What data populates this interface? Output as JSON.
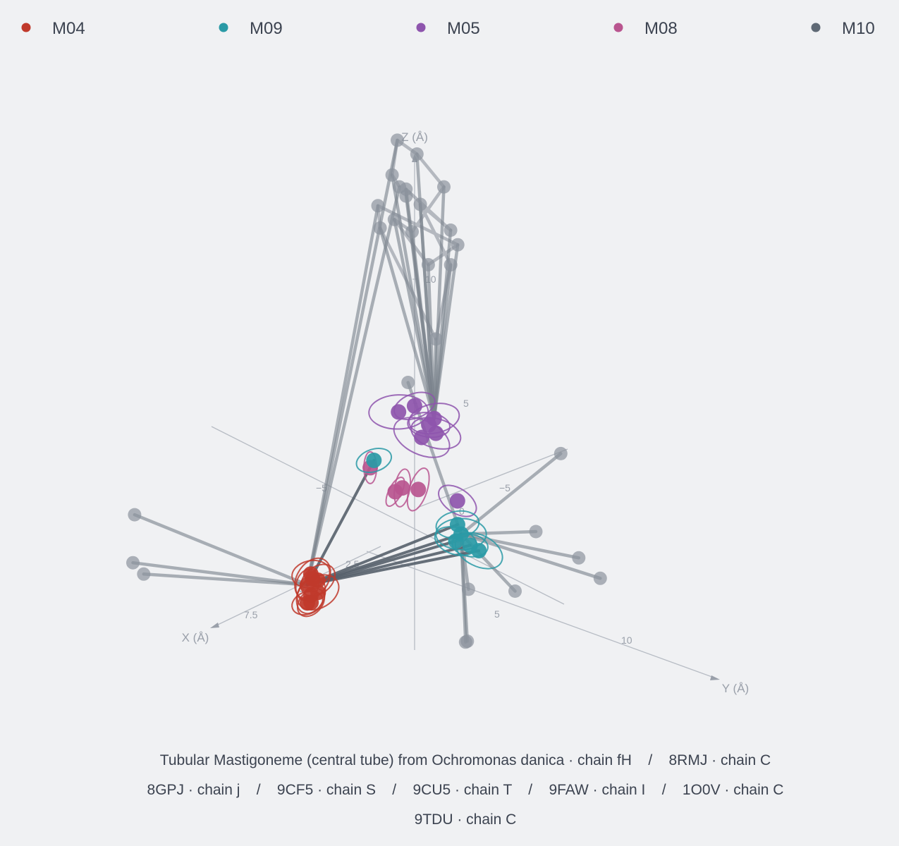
{
  "legend": {
    "items": [
      {
        "name": "M04",
        "color": "#c0392b"
      },
      {
        "name": "M09",
        "color": "#2a9aa6"
      },
      {
        "name": "M05",
        "color": "#8e55ad"
      },
      {
        "name": "M08",
        "color": "#b9558f"
      },
      {
        "name": "M10",
        "color": "#5f6975"
      }
    ]
  },
  "caption": {
    "lines": [
      "Tubular Mastigoneme (central tube) from Ochromonas danica · chain fH    /    8RMJ · chain C",
      "8GPJ · chain j    /    9CF5 · chain S    /    9CU5 · chain T    /    9FAW · chain I    /    1O0V · chain C",
      "9TDU · chain C"
    ]
  },
  "chart_data": {
    "type": "scatter",
    "projection": "3d-perspective",
    "axes": {
      "x": {
        "title": "X (Å)",
        "ticks": [
          "−5",
          "2.5",
          "5",
          "7.5"
        ]
      },
      "y": {
        "title": "Y (Å)",
        "ticks": [
          "−5",
          "5",
          "10"
        ]
      },
      "z": {
        "title": "Z (Å)",
        "ticks": [
          "5",
          "10"
        ]
      }
    },
    "origin_label": "0",
    "series": [
      {
        "name": "M04",
        "color": "#c0392b",
        "points": [
          [
            7.4,
            1.3,
            0.0
          ],
          [
            7.5,
            1.6,
            -0.3
          ],
          [
            7.2,
            1.4,
            0.2
          ],
          [
            7.8,
            1.9,
            -0.4
          ],
          [
            7.0,
            1.5,
            0.1
          ],
          [
            7.3,
            1.8,
            -0.2
          ],
          [
            7.6,
            1.5,
            -0.6
          ],
          [
            7.1,
            1.2,
            0.3
          ]
        ]
      },
      {
        "name": "M09",
        "color": "#2a9aa6",
        "points": [
          [
            1.6,
            -0.7,
            2.4
          ],
          [
            0.6,
            3.0,
            0.5
          ],
          [
            0.8,
            3.4,
            0.3
          ],
          [
            0.5,
            3.6,
            -0.2
          ],
          [
            0.9,
            3.2,
            0.0
          ],
          [
            0.3,
            3.9,
            -0.4
          ]
        ]
      },
      {
        "name": "M05",
        "color": "#8e55ad",
        "points": [
          [
            -0.5,
            -0.5,
            3.9
          ],
          [
            -0.5,
            0.6,
            3.7
          ],
          [
            -0.2,
            -1.1,
            3.6
          ],
          [
            -0.6,
            0.2,
            3.3
          ],
          [
            -0.4,
            0.8,
            3.2
          ],
          [
            -0.1,
            0.3,
            3.0
          ],
          [
            0.2,
            2.6,
            1.2
          ]
        ]
      },
      {
        "name": "M08",
        "color": "#b9558f",
        "points": [
          [
            1.2,
            -1.3,
            1.8
          ],
          [
            0.9,
            0.2,
            1.3
          ],
          [
            0.6,
            0.8,
            1.3
          ],
          [
            1.0,
            -0.1,
            1.1
          ]
        ]
      },
      {
        "name": "M10",
        "color": "#5f6975",
        "points": [
          [
            -4.1,
            -4.9,
            10.2
          ],
          [
            -5.0,
            -6.2,
            10.0
          ],
          [
            -5.6,
            -6.5,
            11.1
          ],
          [
            -6.0,
            -5.8,
            10.6
          ],
          [
            -5.2,
            -3.5,
            10.2
          ],
          [
            -3.3,
            -3.4,
            9.1
          ],
          [
            -3.0,
            -4.1,
            9.5
          ],
          [
            -2.7,
            -1.9,
            8.4
          ],
          [
            -6.8,
            -4.3,
            7.1
          ],
          [
            -4.6,
            -6.6,
            8.8
          ],
          [
            -2.9,
            -4.8,
            9.0
          ],
          [
            -1.0,
            0.2,
            6.6
          ],
          [
            -6.3,
            -4.2,
            6.5
          ],
          [
            -6.7,
            -6.3,
            8.2
          ],
          [
            -6.6,
            -4.5,
            7.7
          ],
          [
            -7.0,
            -7.4,
            8.4
          ],
          [
            -6.4,
            -6.8,
            8.5
          ],
          [
            2.8,
            2.4,
            6.8
          ],
          [
            -0.6,
            7.6,
            4.2
          ],
          [
            2.0,
            4.4,
            0.7
          ],
          [
            -0.1,
            6.7,
            1.0
          ],
          [
            2.8,
            8.4,
            0.1
          ],
          [
            0.2,
            9.4,
            0.8
          ],
          [
            0.5,
            10.9,
            0.5
          ],
          [
            4.8,
            7.7,
            -1.4
          ],
          [
            4.9,
            7.7,
            -1.4
          ],
          [
            1.6,
            4.6,
            -1.3
          ],
          [
            9.2,
            -6.7,
            -0.7
          ],
          [
            8.8,
            -7.0,
            1.0
          ],
          [
            9.5,
            -5.8,
            -0.8
          ]
        ]
      }
    ],
    "legend_position": "top",
    "grid": false
  }
}
